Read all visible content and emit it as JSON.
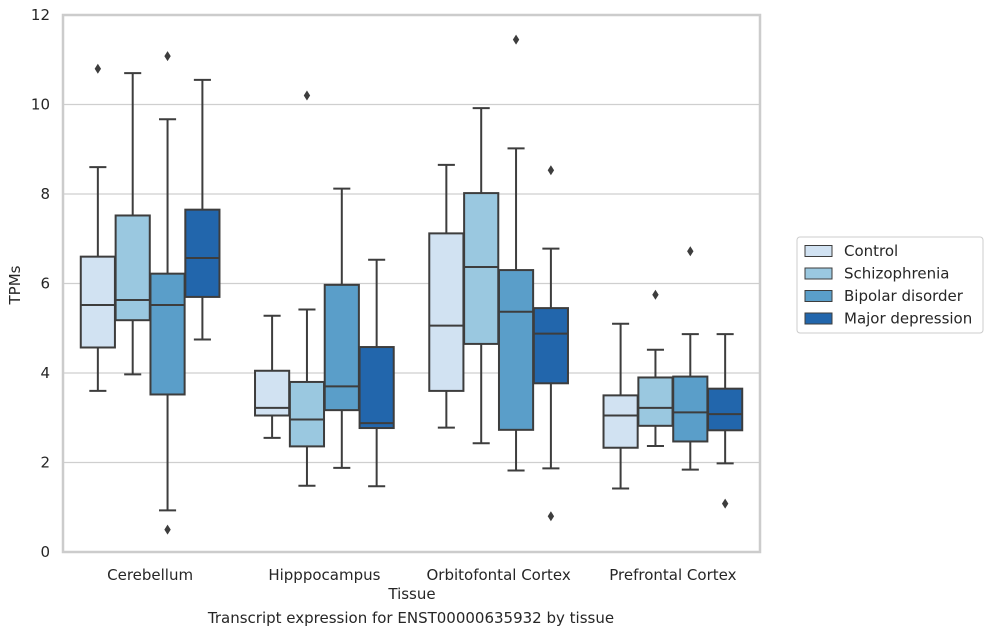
{
  "caption": "Transcript expression for ENST00000635932 by tissue",
  "chart_data": {
    "type": "box",
    "xlabel": "Tissue",
    "ylabel": "TPMs",
    "ylim": [
      0,
      12
    ],
    "yticks": [
      0,
      2,
      4,
      6,
      8,
      10,
      12
    ],
    "grid": "horizontal",
    "legend_position": "right",
    "categories": [
      "Cerebellum",
      "Hipppocampus",
      "Orbitofontal Cortex",
      "Prefrontal Cortex"
    ],
    "series": [
      {
        "name": "Control",
        "color": "#d1e2f2",
        "boxes": [
          {
            "whisker_low": 3.6,
            "q1": 4.57,
            "median": 5.52,
            "q3": 6.6,
            "whisker_high": 8.6,
            "outliers": [
              10.8
            ]
          },
          {
            "whisker_low": 2.55,
            "q1": 3.05,
            "median": 3.22,
            "q3": 4.05,
            "whisker_high": 5.28,
            "outliers": []
          },
          {
            "whisker_low": 2.78,
            "q1": 3.6,
            "median": 5.06,
            "q3": 7.12,
            "whisker_high": 8.65,
            "outliers": []
          },
          {
            "whisker_low": 1.42,
            "q1": 2.33,
            "median": 3.05,
            "q3": 3.5,
            "whisker_high": 5.1,
            "outliers": []
          }
        ]
      },
      {
        "name": "Schizophrenia",
        "color": "#9ac8e0",
        "boxes": [
          {
            "whisker_low": 3.97,
            "q1": 5.18,
            "median": 5.63,
            "q3": 7.52,
            "whisker_high": 10.7,
            "outliers": []
          },
          {
            "whisker_low": 1.48,
            "q1": 2.36,
            "median": 2.96,
            "q3": 3.8,
            "whisker_high": 5.42,
            "outliers": [
              10.2
            ]
          },
          {
            "whisker_low": 2.43,
            "q1": 4.65,
            "median": 6.37,
            "q3": 8.02,
            "whisker_high": 9.92,
            "outliers": []
          },
          {
            "whisker_low": 2.37,
            "q1": 2.82,
            "median": 3.22,
            "q3": 3.9,
            "whisker_high": 4.52,
            "outliers": [
              5.75
            ]
          }
        ]
      },
      {
        "name": "Bipolar disorder",
        "color": "#5a9ec9",
        "boxes": [
          {
            "whisker_low": 0.93,
            "q1": 3.52,
            "median": 5.52,
            "q3": 6.22,
            "whisker_high": 9.67,
            "outliers": [
              11.08,
              0.5
            ]
          },
          {
            "whisker_low": 1.88,
            "q1": 3.17,
            "median": 3.7,
            "q3": 5.97,
            "whisker_high": 8.12,
            "outliers": []
          },
          {
            "whisker_low": 1.82,
            "q1": 2.73,
            "median": 5.37,
            "q3": 6.3,
            "whisker_high": 9.02,
            "outliers": [
              11.45
            ]
          },
          {
            "whisker_low": 1.84,
            "q1": 2.47,
            "median": 3.12,
            "q3": 3.92,
            "whisker_high": 4.87,
            "outliers": [
              6.72
            ]
          }
        ]
      },
      {
        "name": "Major depression",
        "color": "#2266ac",
        "boxes": [
          {
            "whisker_low": 4.75,
            "q1": 5.7,
            "median": 6.57,
            "q3": 7.65,
            "whisker_high": 10.55,
            "outliers": []
          },
          {
            "whisker_low": 1.47,
            "q1": 2.77,
            "median": 2.88,
            "q3": 4.58,
            "whisker_high": 6.53,
            "outliers": []
          },
          {
            "whisker_low": 1.87,
            "q1": 3.77,
            "median": 4.88,
            "q3": 5.45,
            "whisker_high": 6.78,
            "outliers": [
              8.53,
              0.8
            ]
          },
          {
            "whisker_low": 1.98,
            "q1": 2.72,
            "median": 3.08,
            "q3": 3.65,
            "whisker_high": 4.87,
            "outliers": [
              1.08
            ]
          }
        ]
      }
    ]
  }
}
